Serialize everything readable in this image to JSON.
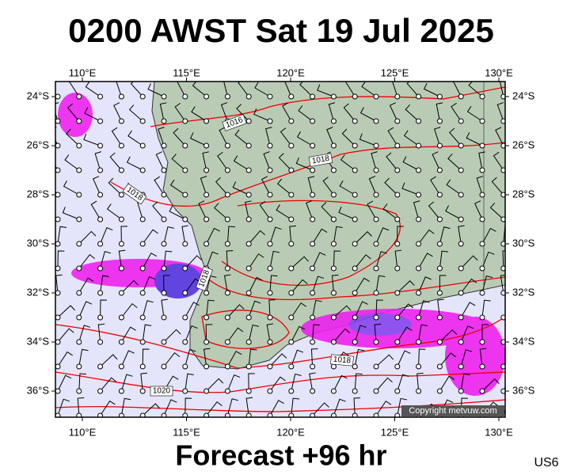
{
  "header": {
    "title": "0200 AWST Sat 19 Jul 2025"
  },
  "map": {
    "lon_labels": [
      "110°E",
      "115°E",
      "120°E",
      "125°E",
      "130°E"
    ],
    "lat_labels": [
      "24°S",
      "26°S",
      "28°S",
      "30°S",
      "32°S",
      "34°S",
      "36°S"
    ],
    "isobar_labels": [
      "1016",
      "1018",
      "1018",
      "1018",
      "1018",
      "1020"
    ],
    "copyright": "Copyright metvuw.com"
  },
  "footer": {
    "caption": "Forecast +96 hr",
    "region": "US6"
  }
}
